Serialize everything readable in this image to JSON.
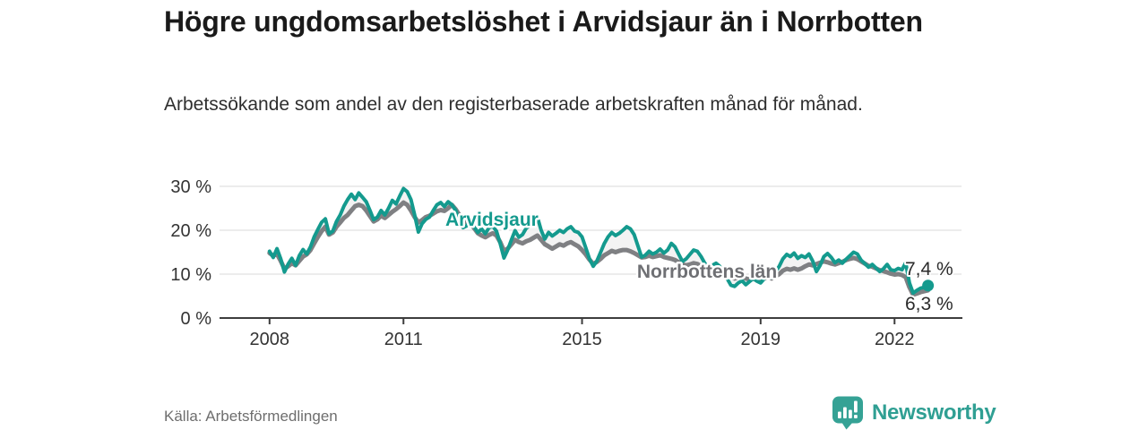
{
  "header": {
    "title": "Högre ungdomsarbetslöshet i Arvidsjaur än i Norrbotten",
    "subtitle": "Arbetssökande som andel av den registerbaserade arbetskraften månad för månad."
  },
  "footer": {
    "source": "Källa: Arbetsförmedlingen",
    "logo_text": "Newsworthy",
    "logo_color": "#35a295",
    "logo_icon": "speech-bubble-bar-chart"
  },
  "chart_data": {
    "type": "line",
    "title": "Högre ungdomsarbetslöshet i Arvidsjaur än i Norrbotten",
    "xlabel": "",
    "ylabel": "",
    "grid": "horizontal",
    "xlim": [
      2006.88,
      2023.5
    ],
    "ylim": [
      0,
      32.45
    ],
    "x_ticks": [
      {
        "value": 2008,
        "label": "2008"
      },
      {
        "value": 2011,
        "label": "2011"
      },
      {
        "value": 2015,
        "label": "2015"
      },
      {
        "value": 2019,
        "label": "2019"
      },
      {
        "value": 2022,
        "label": "2022"
      }
    ],
    "y_ticks": [
      {
        "value": 0,
        "label": "0 %"
      },
      {
        "value": 10,
        "label": "10 %"
      },
      {
        "value": 20,
        "label": "20 %"
      },
      {
        "value": 30,
        "label": "30 %"
      }
    ],
    "between_fill": "#f2f2f2",
    "axis_color": "#3d3d3d",
    "gridline_color": "#d8d8d8",
    "series": [
      {
        "name": "Arvidsjaur",
        "color": "#149a8e",
        "label_color": "#149a8e",
        "start_year": 2008,
        "points_per_year": 12,
        "end_label": "7,4 %",
        "end_value": 7.4,
        "end_dot": true,
        "label_anchor": {
          "year": 2012.98,
          "pct": 21.0
        },
        "values": [
          15.2,
          13.8,
          15.8,
          13.5,
          10.5,
          12.3,
          13.6,
          12.0,
          14.2,
          15.6,
          14.6,
          16.2,
          18.5,
          20.2,
          21.8,
          22.6,
          19.2,
          19.8,
          22.0,
          23.5,
          25.5,
          27.0,
          28.2,
          27.0,
          28.5,
          27.5,
          26.5,
          24.5,
          22.4,
          23.0,
          24.5,
          23.5,
          25.0,
          26.8,
          26.0,
          27.8,
          29.5,
          28.8,
          27.0,
          23.5,
          19.6,
          21.5,
          22.5,
          23.0,
          24.5,
          25.8,
          26.3,
          25.4,
          26.5,
          25.8,
          24.6,
          22.0,
          20.6,
          21.0,
          22.3,
          20.8,
          19.5,
          20.3,
          19.2,
          20.6,
          20.9,
          19.8,
          17.0,
          13.7,
          15.5,
          17.8,
          19.9,
          18.4,
          19.0,
          20.5,
          21.0,
          21.8,
          23.0,
          20.0,
          18.0,
          19.5,
          18.7,
          19.3,
          20.0,
          19.5,
          20.3,
          20.8,
          19.8,
          19.5,
          18.5,
          16.0,
          13.5,
          11.8,
          13.0,
          15.0,
          17.0,
          18.5,
          19.5,
          18.8,
          19.3,
          20.0,
          20.8,
          20.3,
          19.0,
          16.5,
          13.9,
          14.3,
          15.2,
          14.6,
          15.0,
          15.7,
          14.8,
          15.5,
          17.0,
          16.2,
          14.5,
          12.9,
          13.5,
          14.5,
          15.5,
          15.2,
          14.0,
          12.5,
          11.5,
          12.0,
          12.5,
          11.8,
          10.5,
          9.0,
          7.5,
          7.2,
          8.0,
          8.5,
          7.6,
          8.3,
          9.0,
          8.4,
          8.0,
          9.0,
          10.0,
          9.2,
          10.5,
          11.8,
          13.5,
          14.5,
          14.0,
          14.8,
          13.6,
          14.2,
          13.8,
          14.6,
          13.0,
          10.6,
          12.0,
          14.0,
          14.7,
          13.8,
          12.6,
          13.2,
          12.5,
          13.4,
          14.2,
          15.0,
          14.6,
          13.2,
          12.4,
          11.6,
          12.2,
          11.4,
          10.6,
          11.2,
          12.2,
          11.0,
          10.8,
          11.3,
          11.0,
          12.6,
          8.0,
          5.7,
          6.3,
          6.8,
          7.0,
          7.4
        ]
      },
      {
        "name": "Norrbottens län",
        "color": "#7f8083",
        "label_color": "#6f7074",
        "start_year": 2008,
        "points_per_year": 12,
        "end_label": "6,3 %",
        "end_value": 6.3,
        "end_dot": false,
        "label_anchor": {
          "year": 2017.8,
          "pct": 9.2
        },
        "values": [
          14.8,
          14.2,
          14.6,
          13.0,
          11.2,
          11.8,
          12.5,
          12.0,
          13.0,
          14.0,
          14.5,
          15.5,
          17.0,
          18.5,
          19.8,
          20.8,
          19.0,
          19.5,
          20.8,
          21.8,
          22.8,
          23.5,
          24.5,
          25.5,
          25.8,
          25.5,
          24.5,
          23.2,
          22.0,
          22.5,
          23.3,
          22.8,
          23.5,
          24.2,
          24.8,
          25.5,
          26.3,
          25.8,
          24.5,
          23.0,
          21.8,
          22.3,
          23.0,
          23.3,
          23.8,
          24.3,
          24.6,
          24.4,
          25.0,
          25.8,
          24.8,
          23.5,
          22.3,
          21.8,
          21.5,
          20.5,
          19.3,
          18.8,
          18.4,
          18.9,
          19.3,
          18.8,
          17.3,
          15.3,
          15.8,
          16.8,
          17.8,
          17.3,
          17.0,
          17.5,
          17.8,
          18.3,
          18.8,
          17.8,
          16.8,
          16.3,
          15.8,
          16.3,
          16.8,
          16.5,
          17.0,
          17.3,
          16.8,
          16.3,
          15.5,
          14.5,
          13.3,
          12.3,
          12.8,
          13.5,
          14.3,
          14.8,
          15.3,
          15.0,
          15.3,
          15.5,
          15.5,
          15.2,
          14.8,
          14.3,
          13.8,
          13.9,
          14.2,
          13.9,
          14.1,
          14.3,
          13.9,
          13.7,
          13.5,
          13.2,
          12.7,
          12.2,
          12.0,
          12.2,
          12.5,
          12.3,
          11.8,
          11.3,
          10.8,
          11.0,
          11.2,
          10.8,
          10.3,
          9.8,
          9.3,
          9.0,
          9.3,
          9.5,
          9.0,
          8.8,
          9.0,
          8.8,
          8.7,
          9.0,
          9.3,
          9.0,
          9.5,
          10.0,
          10.8,
          11.2,
          11.0,
          11.3,
          11.0,
          11.3,
          11.8,
          12.2,
          12.0,
          12.3,
          12.6,
          12.9,
          12.7,
          12.4,
          12.2,
          12.5,
          12.8,
          13.2,
          13.5,
          13.7,
          13.4,
          12.9,
          12.4,
          11.9,
          11.7,
          11.3,
          10.9,
          10.7,
          10.4,
          10.1,
          9.9,
          10.0,
          9.8,
          9.3,
          7.0,
          5.3,
          5.6,
          5.9,
          6.1,
          6.3
        ]
      }
    ]
  }
}
